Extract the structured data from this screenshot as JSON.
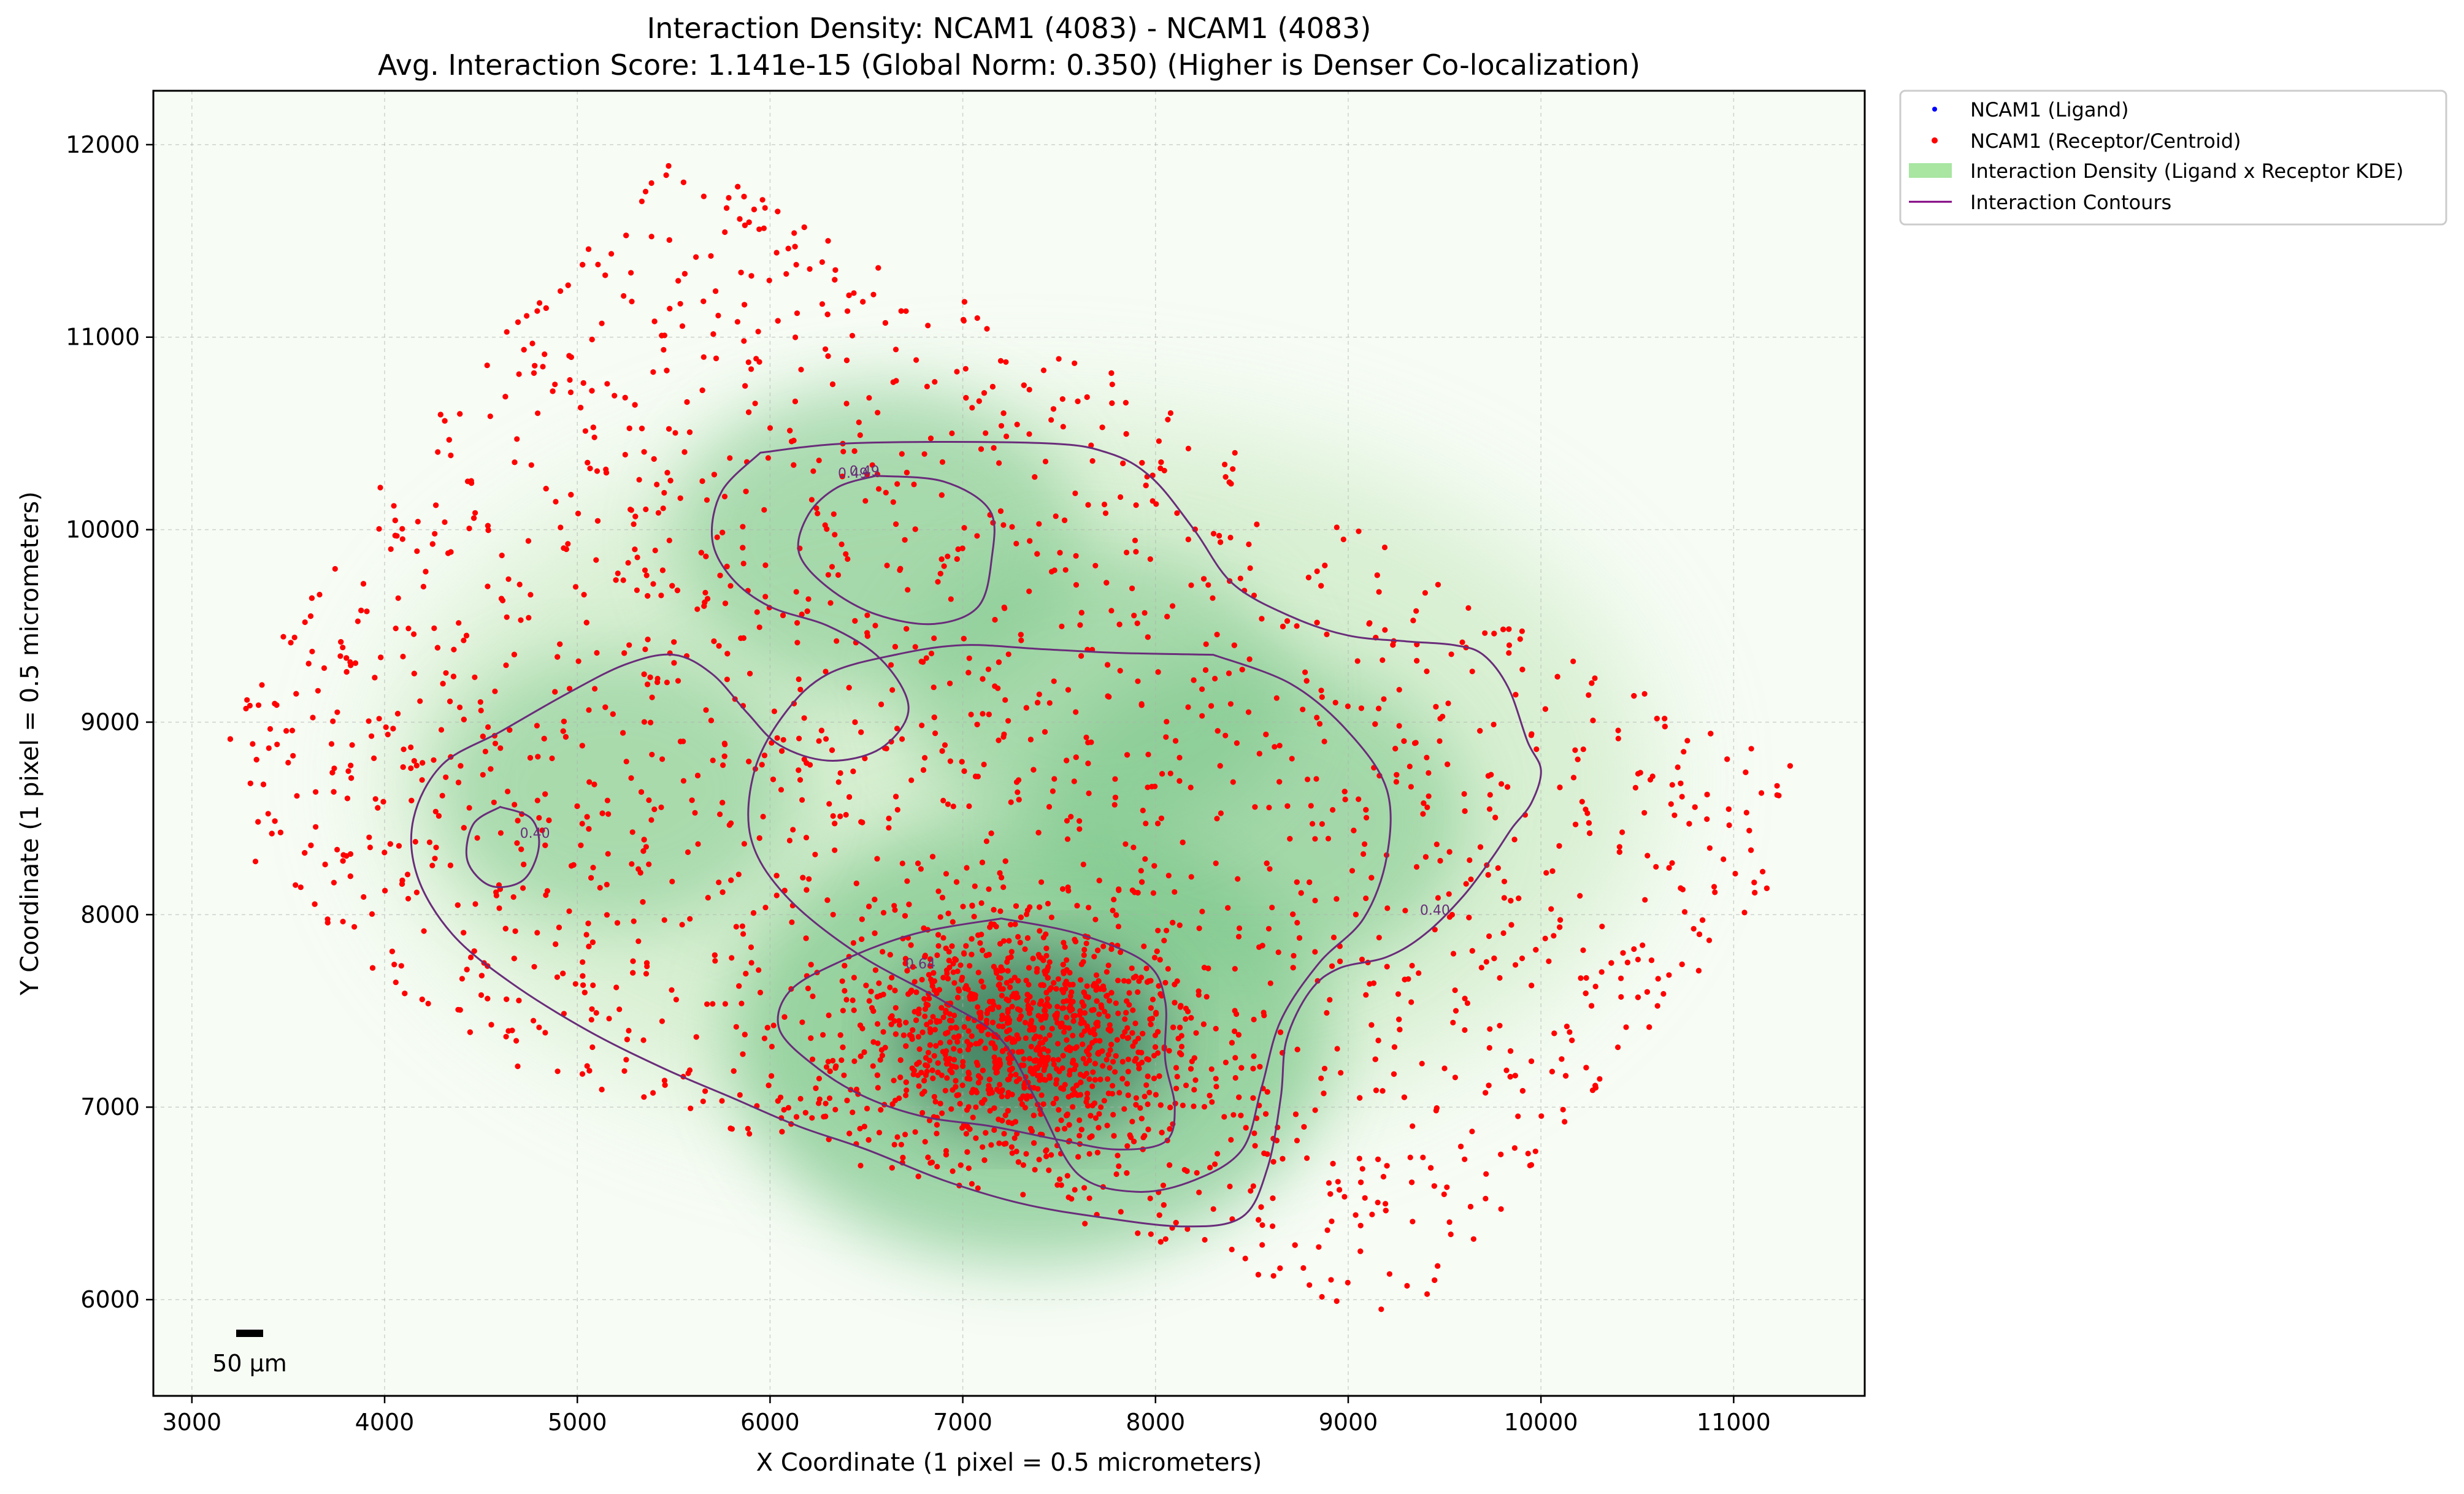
{
  "chart_data": {
    "type": "scatter",
    "title": "Interaction Density: NCAM1 (4083) - NCAM1 (4083)",
    "subtitle": "Avg. Interaction Score: 1.141e-15 (Global Norm: 0.350) (Higher is Denser Co-localization)",
    "xlabel": "X Coordinate (1 pixel = 0.5 micrometers)",
    "ylabel": "Y Coordinate (1 pixel = 0.5 micrometers)",
    "xlim": [
      2800,
      11680
    ],
    "ylim": [
      5500,
      12280
    ],
    "xticks": [
      "3000",
      "4000",
      "5000",
      "6000",
      "7000",
      "8000",
      "9000",
      "10000",
      "11000"
    ],
    "yticks": [
      "6000",
      "7000",
      "8000",
      "9000",
      "10000",
      "11000",
      "12000"
    ],
    "grid": true,
    "legend_position": "outside upper right",
    "legend": [
      {
        "label": "NCAM1 (Ligand)",
        "kind": "marker",
        "color": "#0000ff"
      },
      {
        "label": "NCAM1 (Receptor/Centroid)",
        "kind": "marker",
        "color": "#ff0000"
      },
      {
        "label": "Interaction Density (Ligand x Receptor KDE)",
        "kind": "patch",
        "color": "#a8e6a2"
      },
      {
        "label": "Interaction Contours",
        "kind": "line",
        "color": "#800080"
      }
    ],
    "scale_bar_label": "50 µm",
    "colors": {
      "points": "#ff0000",
      "density_low": "#f7fcf5",
      "density_high": "#2e6e52",
      "contour": "#6a2c7a"
    },
    "density_hotspots": [
      {
        "x": 7350,
        "y": 7350,
        "weight": 1.0
      },
      {
        "x": 6550,
        "y": 9950,
        "weight": 0.55
      },
      {
        "x": 8500,
        "y": 8500,
        "weight": 0.6
      },
      {
        "x": 5200,
        "y": 8650,
        "weight": 0.45
      },
      {
        "x": 7700,
        "y": 9150,
        "weight": 0.5
      }
    ],
    "contour_labels": [
      "0.49",
      "0.64",
      "0.40",
      "0.49",
      "0.40"
    ],
    "contours": [
      {
        "level": "0.49",
        "label": "0.49",
        "label_at": [
          6430,
          10270
        ],
        "points": [
          [
            5950,
            10400
          ],
          [
            6450,
            10450
          ],
          [
            7400,
            10450
          ],
          [
            7750,
            10400
          ],
          [
            7980,
            10270
          ],
          [
            8200,
            10000
          ],
          [
            8400,
            9720
          ],
          [
            8700,
            9550
          ],
          [
            9000,
            9450
          ],
          [
            9300,
            9420
          ],
          [
            9550,
            9400
          ],
          [
            9700,
            9350
          ],
          [
            9830,
            9180
          ],
          [
            9930,
            8900
          ],
          [
            10000,
            8750
          ],
          [
            9950,
            8580
          ],
          [
            9850,
            8450
          ],
          [
            9750,
            8300
          ],
          [
            9600,
            8100
          ],
          [
            9400,
            7900
          ],
          [
            9200,
            7780
          ],
          [
            8950,
            7720
          ],
          [
            8800,
            7600
          ],
          [
            8680,
            7350
          ],
          [
            8650,
            7050
          ],
          [
            8580,
            6680
          ],
          [
            8450,
            6430
          ],
          [
            8150,
            6380
          ],
          [
            7700,
            6430
          ],
          [
            7300,
            6500
          ],
          [
            6900,
            6620
          ],
          [
            6500,
            6780
          ],
          [
            6150,
            6900
          ],
          [
            5800,
            7050
          ],
          [
            5450,
            7200
          ],
          [
            5050,
            7400
          ],
          [
            4650,
            7650
          ],
          [
            4350,
            7900
          ],
          [
            4170,
            8200
          ],
          [
            4150,
            8500
          ],
          [
            4300,
            8780
          ],
          [
            4600,
            8950
          ],
          [
            4950,
            9150
          ],
          [
            5250,
            9300
          ],
          [
            5500,
            9350
          ],
          [
            5700,
            9250
          ],
          [
            5880,
            9050
          ],
          [
            6050,
            8880
          ],
          [
            6300,
            8800
          ],
          [
            6550,
            8850
          ],
          [
            6700,
            9000
          ],
          [
            6700,
            9150
          ],
          [
            6550,
            9350
          ],
          [
            6300,
            9500
          ],
          [
            6000,
            9600
          ],
          [
            5800,
            9750
          ],
          [
            5700,
            9950
          ],
          [
            5750,
            10200
          ],
          [
            5950,
            10400
          ]
        ]
      },
      {
        "level": "0.64",
        "label": "0.64",
        "label_at": [
          6780,
          7720
        ],
        "points": [
          [
            7200,
            7980
          ],
          [
            7600,
            7900
          ],
          [
            7950,
            7750
          ],
          [
            8050,
            7550
          ],
          [
            8050,
            7250
          ],
          [
            8100,
            7000
          ],
          [
            8050,
            6820
          ],
          [
            7800,
            6780
          ],
          [
            7500,
            6830
          ],
          [
            7150,
            6900
          ],
          [
            6800,
            6950
          ],
          [
            6500,
            7050
          ],
          [
            6250,
            7200
          ],
          [
            6050,
            7400
          ],
          [
            6100,
            7600
          ],
          [
            6350,
            7750
          ],
          [
            6750,
            7900
          ],
          [
            7200,
            7980
          ]
        ]
      },
      {
        "level": "0.40",
        "label": "0.40",
        "label_at": [
          9450,
          8000
        ],
        "points": [
          [
            8300,
            9350
          ],
          [
            8700,
            9200
          ],
          [
            9000,
            8950
          ],
          [
            9200,
            8650
          ],
          [
            9200,
            8300
          ],
          [
            9080,
            7980
          ],
          [
            8850,
            7750
          ],
          [
            8650,
            7450
          ],
          [
            8550,
            7100
          ],
          [
            8450,
            6780
          ],
          [
            8200,
            6620
          ],
          [
            7900,
            6560
          ],
          [
            7600,
            6650
          ],
          [
            7400,
            7000
          ],
          [
            7200,
            7350
          ],
          [
            6900,
            7550
          ],
          [
            6450,
            7800
          ],
          [
            6080,
            8100
          ],
          [
            5900,
            8400
          ],
          [
            5920,
            8750
          ],
          [
            6080,
            9050
          ],
          [
            6300,
            9250
          ],
          [
            6650,
            9350
          ],
          [
            7000,
            9400
          ],
          [
            7400,
            9380
          ],
          [
            7800,
            9360
          ],
          [
            8300,
            9350
          ]
        ]
      },
      {
        "level": "0.49",
        "label": "0.49",
        "label_at": [
          6490,
          10280
        ],
        "points": [
          [
            6550,
            10280
          ],
          [
            6900,
            10250
          ],
          [
            7140,
            10100
          ],
          [
            7150,
            9850
          ],
          [
            7080,
            9600
          ],
          [
            6850,
            9510
          ],
          [
            6550,
            9560
          ],
          [
            6300,
            9700
          ],
          [
            6150,
            9880
          ],
          [
            6200,
            10080
          ],
          [
            6350,
            10220
          ],
          [
            6550,
            10280
          ]
        ]
      },
      {
        "level": "0.40",
        "label": "0.40",
        "label_at": [
          4780,
          8400
        ],
        "points": [
          [
            4600,
            8560
          ],
          [
            4760,
            8500
          ],
          [
            4800,
            8350
          ],
          [
            4720,
            8180
          ],
          [
            4550,
            8150
          ],
          [
            4430,
            8280
          ],
          [
            4460,
            8470
          ],
          [
            4600,
            8560
          ]
        ]
      }
    ],
    "points_summary": {
      "series": "NCAM1 (Receptor/Centroid)",
      "approx_count": 4083
    }
  }
}
